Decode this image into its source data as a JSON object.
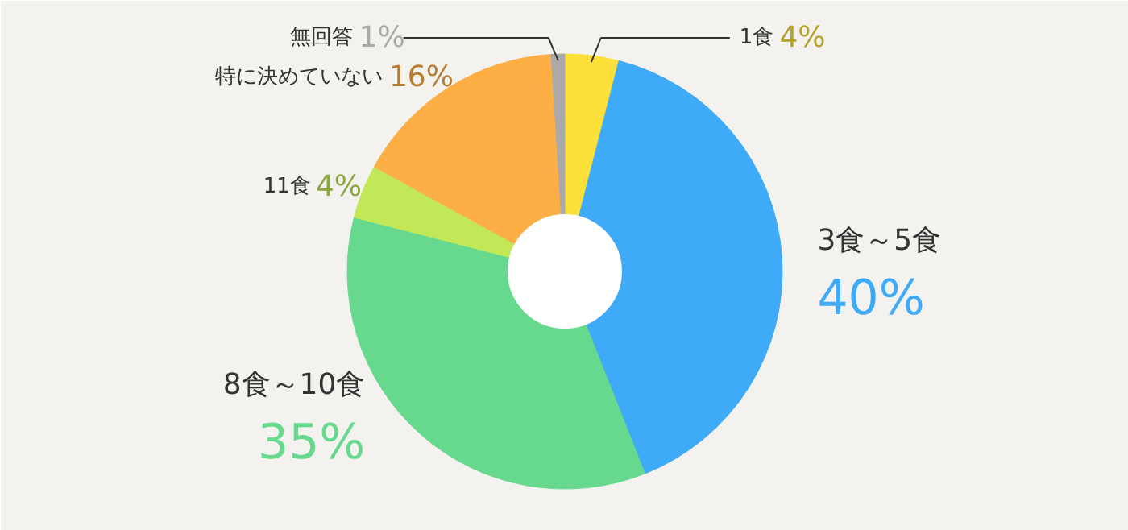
{
  "chart_data": {
    "type": "donut",
    "categories": [
      "1食",
      "3食～5食",
      "8食～10食",
      "11食",
      "特に決めていない",
      "無回答"
    ],
    "values": [
      4,
      40,
      35,
      4,
      16,
      1
    ],
    "colors": [
      "#fde03a",
      "#3eaaf8",
      "#66d98e",
      "#c2e858",
      "#fdae45",
      "#aaaaaa"
    ],
    "value_labels": [
      "4%",
      "40%",
      "35%",
      "4%",
      "16%",
      "1%"
    ]
  }
}
